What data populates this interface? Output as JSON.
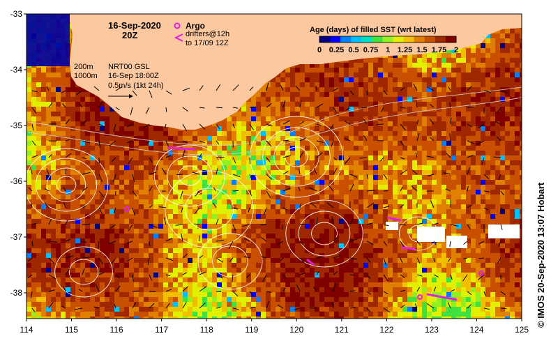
{
  "header": {
    "date": "16-Sep-2020",
    "time": "20Z"
  },
  "argo": {
    "label": "Argo",
    "drifters_line1": "drifters@12h",
    "drifters_line2": "to 17/09 12Z",
    "color": "#e020e0"
  },
  "info": {
    "iso_200": "200m",
    "iso_1000": "1000m",
    "product": "NRT00 GSL",
    "valid": "16-Sep 18:00Z",
    "scale": "0.5m/s (1kt 24h)"
  },
  "colorbar": {
    "title": "Age (days) of filled SST (wrt latest)",
    "ticks": [
      "0",
      "0.25",
      "0.5",
      "0.75",
      "1",
      "1.25",
      "1.5",
      "1.75",
      "2"
    ],
    "colors": [
      "#000080",
      "#0000ff",
      "#0080ff",
      "#00c0ff",
      "#00e0c0",
      "#40e040",
      "#90f020",
      "#e0f000",
      "#f0c000",
      "#e08000",
      "#c85000",
      "#a02800",
      "#800000"
    ]
  },
  "axes": {
    "lon_labels": [
      "114",
      "115",
      "116",
      "117",
      "118",
      "119",
      "120",
      "121",
      "122",
      "123",
      "124",
      "125"
    ],
    "lat_labels": [
      "-33",
      "-34",
      "-35",
      "-36",
      "-37",
      "-38"
    ]
  },
  "land_color": "#fcc8a0",
  "credit": "© IMOS 20-Sep-2020 13:07 Hobart"
}
